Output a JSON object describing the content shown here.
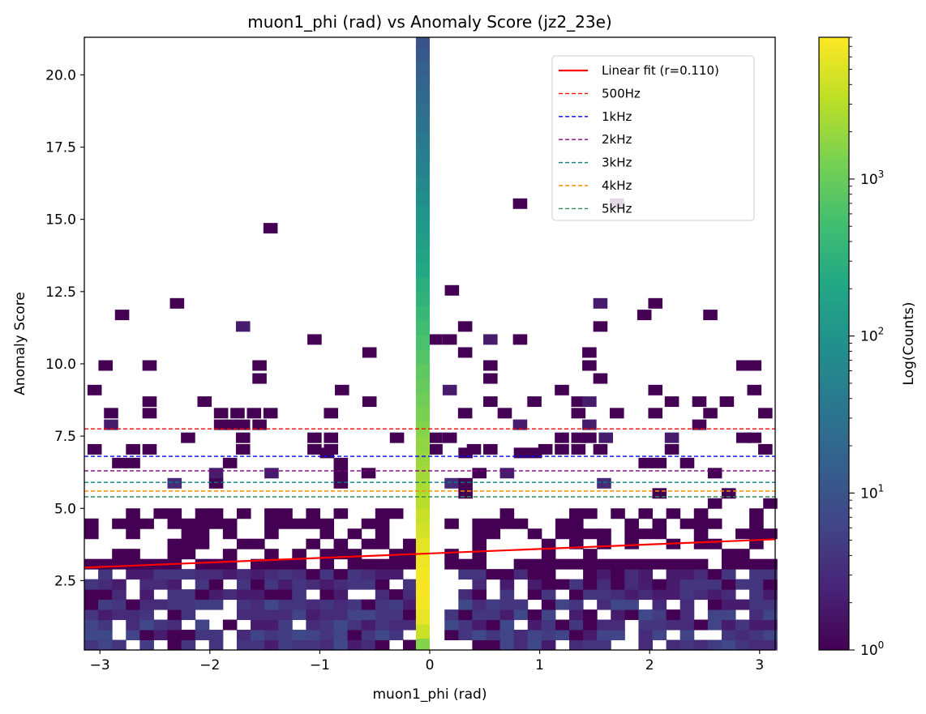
{
  "chart_data": {
    "type": "heatmap",
    "title": "muon1_phi (rad) vs Anomaly Score (jz2_23e)",
    "xlabel": "muon1_phi (rad)",
    "ylabel": "Anomaly Score",
    "xlim": [
      -3.14159,
      3.14159
    ],
    "ylim": [
      0.1,
      21.3
    ],
    "x_ticks": [
      -3,
      -2,
      -1,
      0,
      1,
      2,
      3
    ],
    "x_tick_labels": [
      "−3",
      "−2",
      "−1",
      "0",
      "1",
      "2",
      "3"
    ],
    "y_ticks": [
      2.5,
      5.0,
      7.5,
      10.0,
      12.5,
      15.0,
      17.5,
      20.0
    ],
    "y_tick_labels": [
      "2.5",
      "5.0",
      "7.5",
      "10.0",
      "12.5",
      "15.0",
      "17.5",
      "20.0"
    ],
    "grid": false,
    "legend_position": "top-right",
    "colormap": "viridis",
    "colorbar": {
      "label": "Log(Counts)",
      "scale": "log",
      "range": [
        1,
        8000
      ],
      "tick_labels": [
        {
          "base": "10",
          "exp": "0",
          "value": 1
        },
        {
          "base": "10",
          "exp": "1",
          "value": 10
        },
        {
          "base": "10",
          "exp": "2",
          "value": 100
        },
        {
          "base": "10",
          "exp": "3",
          "value": 1000
        }
      ]
    },
    "fit_line": {
      "name": "Linear fit (r=0.110)",
      "color": "#ff0000",
      "x": [
        -3.14159,
        3.14159
      ],
      "y": [
        2.95,
        3.93
      ]
    },
    "thresholds": [
      {
        "name": "500Hz",
        "y": 7.75,
        "color": "#ff0000"
      },
      {
        "name": "1kHz",
        "y": 6.8,
        "color": "#0000ff"
      },
      {
        "name": "2kHz",
        "y": 6.3,
        "color": "#800080"
      },
      {
        "name": "3kHz",
        "y": 5.9,
        "color": "#008080"
      },
      {
        "name": "4kHz",
        "y": 5.6,
        "color": "#ff8c00"
      },
      {
        "name": "5kHz",
        "y": 5.4,
        "color": "#2e8b57"
      }
    ],
    "central_column": {
      "x": [
        -0.126,
        0.0
      ],
      "counts_by_y_center": [
        [
          0.3,
          1500
        ],
        [
          0.75,
          4000
        ],
        [
          1.25,
          6000
        ],
        [
          1.75,
          7000
        ],
        [
          2.25,
          7500
        ],
        [
          2.75,
          7000
        ],
        [
          3.25,
          6500
        ],
        [
          3.75,
          5500
        ],
        [
          4.25,
          4500
        ],
        [
          4.75,
          3800
        ],
        [
          5.25,
          3000
        ],
        [
          5.75,
          2500
        ],
        [
          6.25,
          2200
        ],
        [
          6.75,
          2000
        ],
        [
          7.25,
          1800
        ],
        [
          7.75,
          1500
        ],
        [
          8.25,
          1300
        ],
        [
          8.75,
          1100
        ],
        [
          9.25,
          950
        ],
        [
          9.75,
          850
        ],
        [
          10.25,
          700
        ],
        [
          10.75,
          600
        ],
        [
          11.25,
          500
        ],
        [
          11.75,
          400
        ],
        [
          12.25,
          330
        ],
        [
          12.75,
          280
        ],
        [
          13.25,
          220
        ],
        [
          13.75,
          180
        ],
        [
          14.25,
          150
        ],
        [
          14.75,
          120
        ],
        [
          15.25,
          100
        ],
        [
          15.75,
          80
        ],
        [
          16.25,
          65
        ],
        [
          16.75,
          55
        ],
        [
          17.25,
          45
        ],
        [
          17.75,
          38
        ],
        [
          18.25,
          32
        ],
        [
          18.75,
          27
        ],
        [
          19.25,
          22
        ],
        [
          19.75,
          18
        ],
        [
          20.25,
          15
        ],
        [
          20.75,
          12
        ],
        [
          21.15,
          10
        ]
      ]
    },
    "sparse_bins": [
      [
        -1.45,
        14.7,
        1
      ],
      [
        0.82,
        15.55,
        1
      ],
      [
        1.7,
        15.55,
        1
      ],
      [
        0.2,
        12.55,
        1
      ],
      [
        -2.3,
        12.1,
        1
      ],
      [
        -2.8,
        11.7,
        1
      ],
      [
        1.55,
        12.1,
        2
      ],
      [
        2.05,
        12.1,
        1
      ],
      [
        1.95,
        11.7,
        1
      ],
      [
        2.55,
        11.7,
        1
      ],
      [
        -1.7,
        11.3,
        2
      ],
      [
        0.32,
        11.3,
        1
      ],
      [
        1.55,
        11.3,
        1
      ],
      [
        -1.05,
        10.85,
        1
      ],
      [
        0.05,
        10.85,
        1
      ],
      [
        0.18,
        10.85,
        1
      ],
      [
        0.55,
        10.85,
        2
      ],
      [
        0.82,
        10.85,
        1
      ],
      [
        -0.55,
        10.4,
        1
      ],
      [
        0.32,
        10.4,
        1
      ],
      [
        1.45,
        10.4,
        1
      ],
      [
        -2.95,
        9.95,
        1
      ],
      [
        -2.55,
        9.95,
        1
      ],
      [
        -1.55,
        9.95,
        1
      ],
      [
        0.55,
        9.95,
        1
      ],
      [
        1.45,
        9.95,
        1
      ],
      [
        2.85,
        9.95,
        1
      ],
      [
        2.95,
        9.95,
        1
      ],
      [
        -1.55,
        9.5,
        1
      ],
      [
        0.55,
        9.5,
        1
      ],
      [
        1.55,
        9.5,
        1
      ],
      [
        -3.05,
        9.1,
        1
      ],
      [
        -0.8,
        9.1,
        1
      ],
      [
        0.18,
        9.1,
        2
      ],
      [
        1.2,
        9.1,
        1
      ],
      [
        2.05,
        9.1,
        1
      ],
      [
        2.95,
        9.1,
        1
      ],
      [
        -2.55,
        8.7,
        1
      ],
      [
        -2.05,
        8.7,
        1
      ],
      [
        -0.55,
        8.7,
        1
      ],
      [
        0.55,
        8.7,
        1
      ],
      [
        0.95,
        8.7,
        1
      ],
      [
        1.35,
        8.7,
        1
      ],
      [
        1.45,
        8.7,
        2
      ],
      [
        2.2,
        8.7,
        1
      ],
      [
        2.45,
        8.7,
        1
      ],
      [
        2.7,
        8.7,
        1
      ],
      [
        -2.9,
        8.3,
        1
      ],
      [
        -2.55,
        8.3,
        1
      ],
      [
        -1.9,
        8.3,
        1
      ],
      [
        -1.75,
        8.3,
        1
      ],
      [
        -1.6,
        8.3,
        1
      ],
      [
        -1.45,
        8.3,
        1
      ],
      [
        -0.9,
        8.3,
        1
      ],
      [
        0.32,
        8.3,
        1
      ],
      [
        0.68,
        8.3,
        1
      ],
      [
        1.35,
        8.3,
        1
      ],
      [
        1.7,
        8.3,
        1
      ],
      [
        2.05,
        8.3,
        1
      ],
      [
        2.55,
        8.3,
        1
      ],
      [
        3.05,
        8.3,
        1
      ],
      [
        -2.9,
        7.9,
        2
      ],
      [
        -1.9,
        7.9,
        1
      ],
      [
        -1.8,
        7.9,
        1
      ],
      [
        -1.7,
        7.9,
        1
      ],
      [
        -1.55,
        7.9,
        1
      ],
      [
        0.82,
        7.9,
        2
      ],
      [
        1.45,
        7.9,
        2
      ],
      [
        2.45,
        7.9,
        1
      ],
      [
        -2.2,
        7.45,
        1
      ],
      [
        -1.7,
        7.45,
        1
      ],
      [
        -1.05,
        7.45,
        1
      ],
      [
        -0.9,
        7.45,
        1
      ],
      [
        -0.3,
        7.45,
        1
      ],
      [
        0.05,
        7.45,
        1
      ],
      [
        0.18,
        7.45,
        1
      ],
      [
        1.2,
        7.45,
        1
      ],
      [
        1.35,
        7.45,
        1
      ],
      [
        1.45,
        7.45,
        1
      ],
      [
        1.6,
        7.45,
        2
      ],
      [
        2.2,
        7.45,
        2
      ],
      [
        2.85,
        7.45,
        1
      ],
      [
        2.95,
        7.45,
        1
      ],
      [
        -3.05,
        7.05,
        1
      ],
      [
        -2.7,
        7.05,
        1
      ],
      [
        -2.55,
        7.05,
        1
      ],
      [
        -1.7,
        7.05,
        1
      ],
      [
        -1.05,
        7.05,
        1
      ],
      [
        -0.9,
        7.05,
        1
      ],
      [
        0.05,
        7.05,
        1
      ],
      [
        0.4,
        7.05,
        1
      ],
      [
        0.55,
        7.05,
        1
      ],
      [
        1.05,
        7.05,
        1
      ],
      [
        1.2,
        7.05,
        1
      ],
      [
        1.35,
        7.05,
        1
      ],
      [
        1.55,
        7.05,
        1
      ],
      [
        2.2,
        7.05,
        1
      ],
      [
        3.05,
        7.05,
        1
      ]
    ]
  }
}
